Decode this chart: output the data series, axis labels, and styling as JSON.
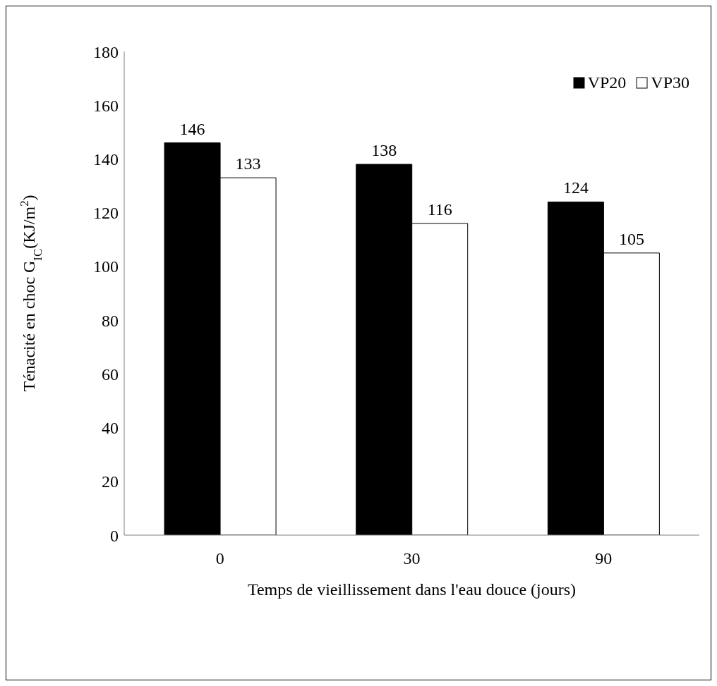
{
  "chart_data": {
    "type": "bar",
    "xlabel": "Temps de vieillissement dans l'eau douce (jours)",
    "ylabel": "Ténacité en choc  G$_{IC}$(KJ/m$^{2}$)",
    "categories": [
      "0",
      "30",
      "90"
    ],
    "series": [
      {
        "name": "VP20",
        "color": "#000000",
        "values": [
          146,
          138,
          124
        ]
      },
      {
        "name": "VP30",
        "color": "#ffffff",
        "values": [
          133,
          116,
          105
        ]
      }
    ],
    "ylim": [
      0,
      180
    ],
    "yticks": [
      0,
      20,
      40,
      60,
      80,
      100,
      120,
      140,
      160,
      180
    ],
    "grid": false,
    "legend": "top right",
    "data_labels": true
  }
}
